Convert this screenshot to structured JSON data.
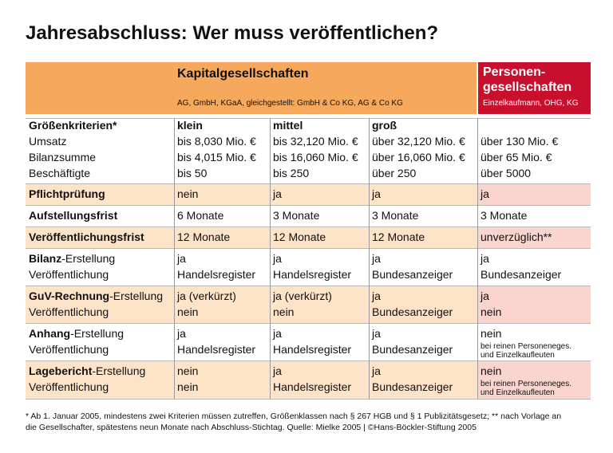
{
  "title": "Jahresabschluss: Wer muss veröffentlichen?",
  "header": {
    "group1": "Kapitalgesellschaften",
    "group1_sub": "AG, GmbH, KGaA, gleichgestellt: GmbH & Co KG, AG & Co KG",
    "group2": [
      "Personen-",
      "gesellschaften"
    ],
    "group2_sub": "Einzelkaufmann, OHG, KG"
  },
  "criteria": {
    "label": "Größenkriterien*",
    "items": [
      "Umsatz",
      "Bilanzsumme",
      "Beschäftigte"
    ],
    "columns": [
      {
        "head": "klein",
        "values": [
          "bis 8,030 Mio. €",
          "bis 4,015 Mio. €",
          "bis 50"
        ]
      },
      {
        "head": "mittel",
        "values": [
          "bis 32,120 Mio. €",
          "bis 16,060 Mio. €",
          "bis 250"
        ]
      },
      {
        "head": "groß",
        "values": [
          "über 32,120 Mio. €",
          "über 16,060 Mio. €",
          "über 250"
        ]
      },
      {
        "values": [
          "über 130 Mio. €",
          "über 65 Mio. €",
          "über 5000"
        ]
      }
    ]
  },
  "rows": [
    {
      "label": {
        "bold": "Pflichtprüfung"
      },
      "cells": [
        [
          "nein"
        ],
        [
          "ja"
        ],
        [
          "ja"
        ],
        [
          "ja"
        ]
      ]
    },
    {
      "label": {
        "bold": "Aufstellungsfrist"
      },
      "cells": [
        [
          "6 Monate"
        ],
        [
          "3 Monate"
        ],
        [
          "3 Monate"
        ],
        [
          "3 Monate"
        ]
      ]
    },
    {
      "label": {
        "bold": "Veröffentlichungsfrist"
      },
      "cells": [
        [
          "12 Monate"
        ],
        [
          "12 Monate"
        ],
        [
          "12 Monate"
        ],
        [
          "unverzüglich**"
        ]
      ]
    },
    {
      "label": {
        "bold": "Bilanz",
        "rest": "-Erstellung",
        "line2": "Veröffentlichung"
      },
      "cells": [
        [
          "ja",
          "Handelsregister"
        ],
        [
          "ja",
          "Handelsregister"
        ],
        [
          "ja",
          "Bundesanzeiger"
        ],
        [
          "ja",
          "Bundesanzeiger"
        ]
      ]
    },
    {
      "label": {
        "bold": "GuV-Rechnung",
        "rest": "-Erstellung",
        "line2": "Veröffentlichung"
      },
      "cells": [
        [
          "ja (verkürzt)",
          "nein"
        ],
        [
          "ja (verkürzt)",
          "nein"
        ],
        [
          "ja",
          "Bundesanzeiger"
        ],
        [
          "ja",
          "nein"
        ]
      ]
    },
    {
      "label": {
        "bold": "Anhang",
        "rest": "-Erstellung",
        "line2": "Veröffentlichung"
      },
      "cells": [
        [
          "ja",
          "Handelsregister"
        ],
        [
          "ja",
          "Handelsregister"
        ],
        [
          "ja",
          "Bundesanzeiger"
        ],
        [
          "nein"
        ]
      ],
      "note": [
        "bei reinen Personeneges.",
        "und Einzelkaufleuten"
      ]
    },
    {
      "label": {
        "bold": "Lagebericht",
        "rest": "-Erstellung",
        "line2": "Veröffentlichung"
      },
      "cells": [
        [
          "nein",
          "nein"
        ],
        [
          "ja",
          "Handelsregister"
        ],
        [
          "ja",
          "Bundesanzeiger"
        ],
        [
          "nein"
        ]
      ],
      "note": [
        "bei reinen Personeneges.",
        "und Einzelkaufleuten"
      ]
    }
  ],
  "footnote": [
    "* Ab 1. Januar 2005, mindestens zwei Kriterien müssen zutreffen, Größenklassen nach § 267 HGB und § 1 Publizitätsgesetz; ** nach Vorlage an",
    "die Gesellschafter, spätestens neun Monate nach Abschluss-Stichtag. Quelle: Mielke 2005 | ©Hans-Böckler-Stiftung 2005"
  ]
}
